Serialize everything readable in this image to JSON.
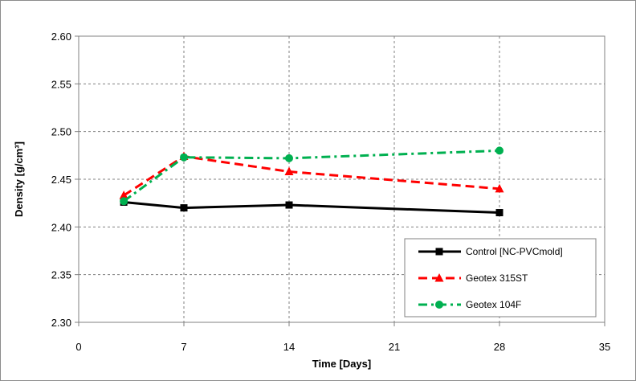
{
  "chart_data": {
    "type": "line",
    "title": "",
    "xlabel": "Time [Days]",
    "ylabel": "Density  [g/cm³]",
    "xlim": [
      0,
      35
    ],
    "ylim": [
      2.3,
      2.6
    ],
    "x_ticks": [
      "0",
      "7",
      "14",
      "21",
      "28",
      "35"
    ],
    "y_ticks": [
      "2.30",
      "2.35",
      "2.40",
      "2.45",
      "2.50",
      "2.55",
      "2.60"
    ],
    "grid": true,
    "legend_position": "bottom-right",
    "x": [
      3,
      7,
      14,
      28
    ],
    "series": [
      {
        "name": "Control [NC-PVCmold]",
        "values": [
          2.426,
          2.42,
          2.423,
          2.415
        ],
        "color": "#000000",
        "marker": "square",
        "dash": "solid"
      },
      {
        "name": "Geotex 315ST",
        "values": [
          2.433,
          2.474,
          2.458,
          2.44
        ],
        "color": "#ff0000",
        "marker": "triangle",
        "dash": "dashed"
      },
      {
        "name": "Geotex 104F",
        "values": [
          2.427,
          2.473,
          2.472,
          2.48
        ],
        "color": "#00b050",
        "marker": "circle",
        "dash": "dash-dot"
      }
    ]
  }
}
